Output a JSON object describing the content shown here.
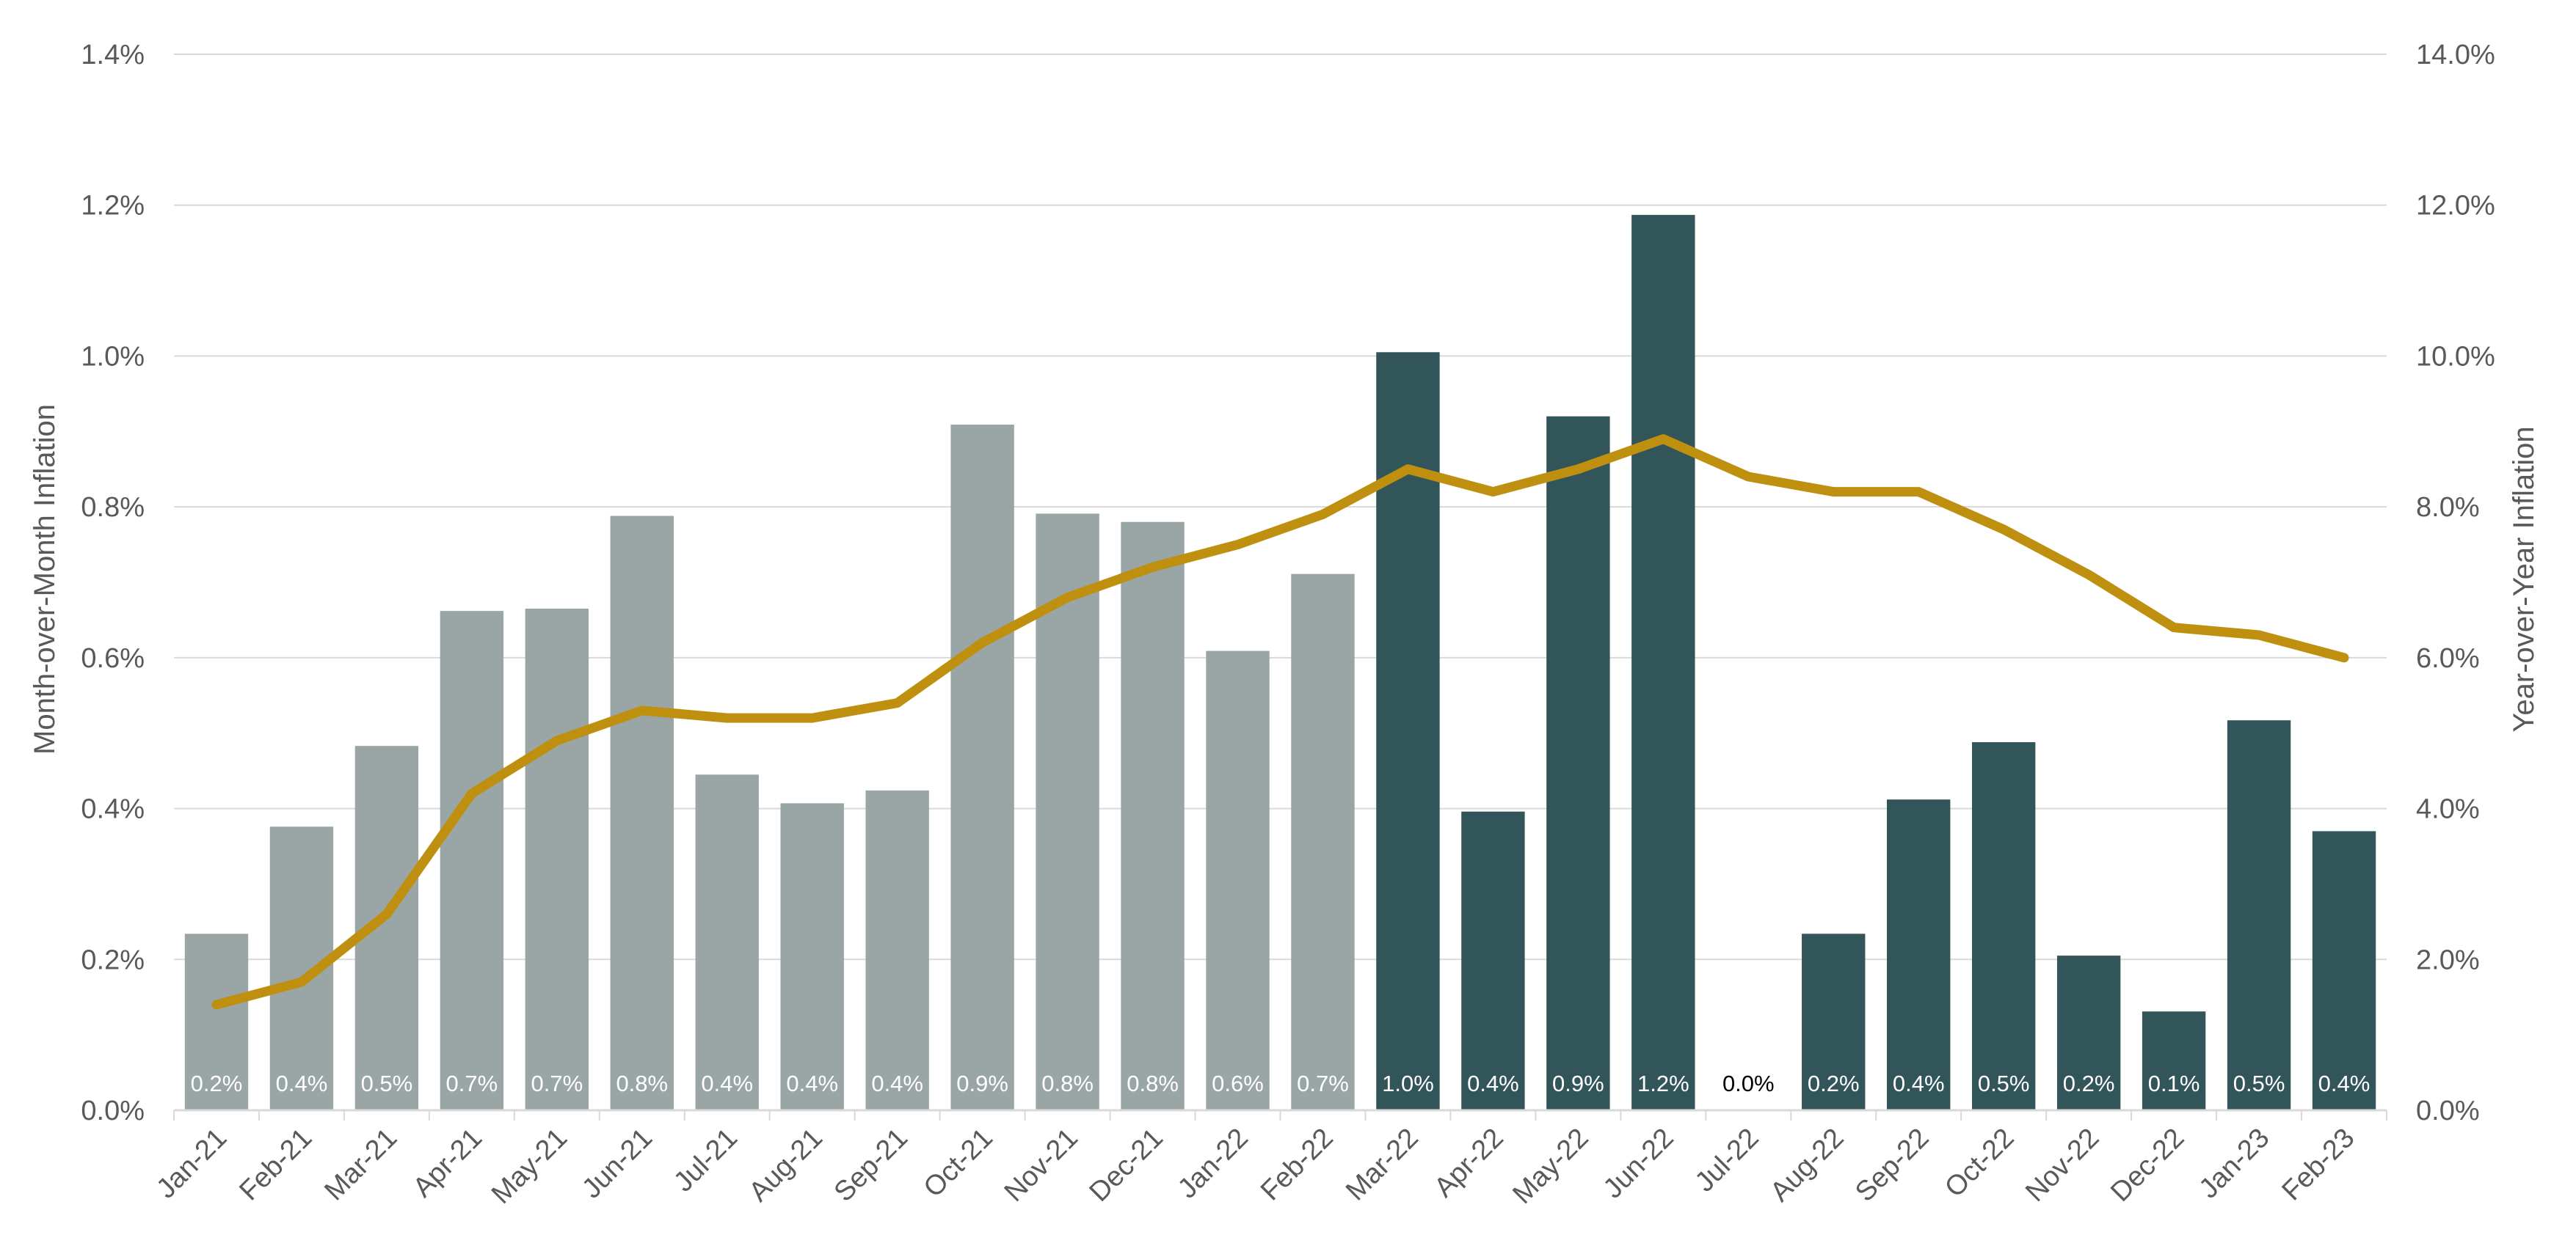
{
  "chart_data": {
    "type": "bar",
    "categories": [
      "Jan-21",
      "Feb-21",
      "Mar-21",
      "Apr-21",
      "May-21",
      "Jun-21",
      "Jul-21",
      "Aug-21",
      "Sep-21",
      "Oct-21",
      "Nov-21",
      "Dec-21",
      "Jan-22",
      "Feb-22",
      "Mar-22",
      "Apr-22",
      "May-22",
      "Jun-22",
      "Jul-22",
      "Aug-22",
      "Sep-22",
      "Oct-22",
      "Nov-22",
      "Dec-22",
      "Jan-23",
      "Feb-23"
    ],
    "series": [
      {
        "type": "bar",
        "axis": "left",
        "values": [
          0.234,
          0.376,
          0.483,
          0.662,
          0.665,
          0.788,
          0.445,
          0.407,
          0.424,
          0.909,
          0.791,
          0.78,
          0.609,
          0.711,
          1.005,
          0.396,
          0.92,
          1.187,
          0.0,
          0.234,
          0.412,
          0.488,
          0.205,
          0.131,
          0.517,
          0.37
        ],
        "data_labels": [
          "0.2%",
          "0.4%",
          "0.5%",
          "0.7%",
          "0.7%",
          "0.8%",
          "0.4%",
          "0.4%",
          "0.4%",
          "0.9%",
          "0.8%",
          "0.8%",
          "0.6%",
          "0.7%",
          "1.0%",
          "0.4%",
          "0.9%",
          "1.2%",
          "0.0%",
          "0.2%",
          "0.4%",
          "0.5%",
          "0.2%",
          "0.1%",
          "0.5%",
          "0.4%"
        ]
      },
      {
        "type": "line",
        "axis": "right",
        "values": [
          1.4,
          1.7,
          2.6,
          4.2,
          4.9,
          5.3,
          5.2,
          5.2,
          5.4,
          6.2,
          6.8,
          7.2,
          7.5,
          7.9,
          8.5,
          8.2,
          8.5,
          8.9,
          8.4,
          8.2,
          8.2,
          7.7,
          7.1,
          6.4,
          6.3,
          6.0
        ]
      }
    ],
    "ylabel": "Month-over-Month Inflation",
    "ylabel_right": "Year-over-Year Inflation",
    "ylim": [
      0,
      1.4
    ],
    "ylim_right": [
      0,
      14
    ],
    "yticks": [
      "0.0%",
      "0.2%",
      "0.4%",
      "0.6%",
      "0.8%",
      "1.0%",
      "1.2%",
      "1.4%"
    ],
    "yticks_right": [
      "0.0%",
      "2.0%",
      "4.0%",
      "6.0%",
      "8.0%",
      "10.0%",
      "12.0%",
      "14.0%"
    ],
    "grid": true,
    "colors": {
      "bar_2021": "#9aa6a6",
      "bar_2022_plus": "#325559",
      "line": "#bf9010",
      "bar_label": "#ffffff",
      "bar_label_zero": "#000000"
    },
    "highlight_from_category": "Mar-22"
  }
}
